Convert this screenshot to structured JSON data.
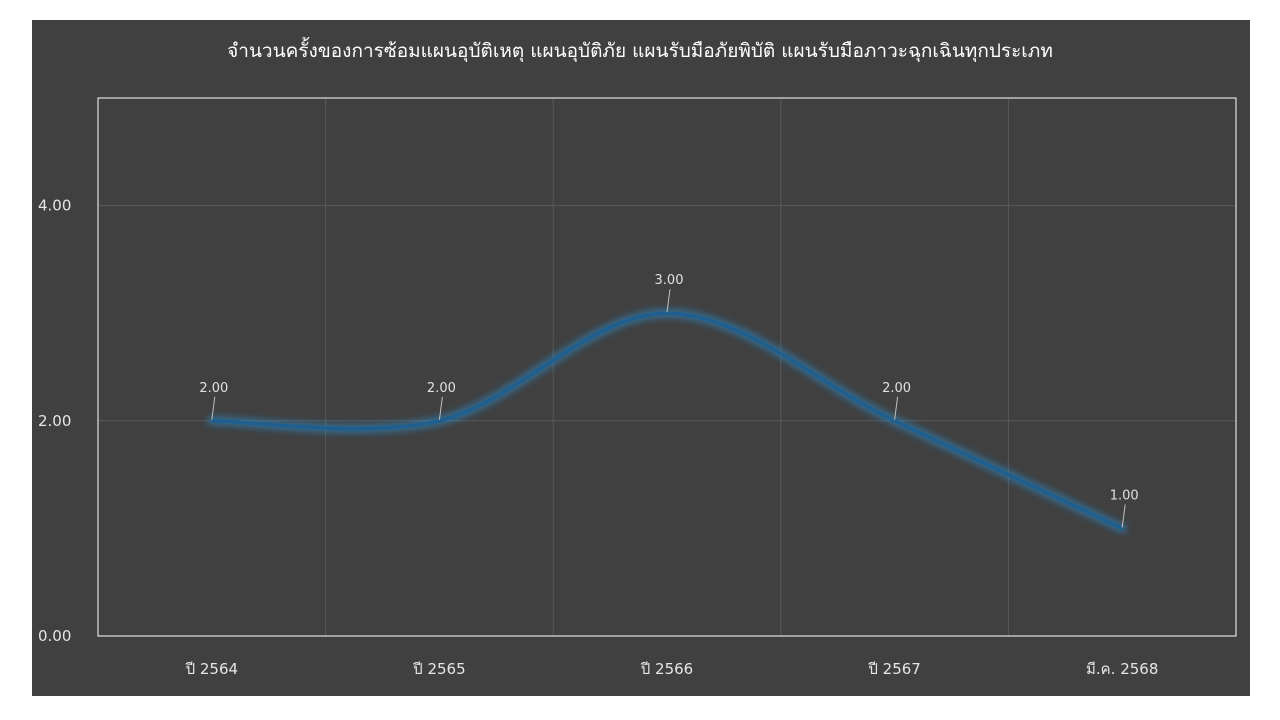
{
  "chart_data": {
    "type": "line",
    "title": "จำนวนครั้งของการซ้อมแผนอุบัติเหตุ แผนอุบัติภัย แผนรับมือภัยพิบัติ แผนรับมือภาวะฉุกเฉินทุกประเภท",
    "xlabel": "",
    "ylabel": "",
    "categories": [
      "ปี 2564",
      "ปี 2565",
      "ปี 2566",
      "ปี 2567",
      "มี.ค. 2568"
    ],
    "series": [
      {
        "values": [
          2,
          2,
          3,
          2,
          1
        ],
        "labels": [
          "2.00",
          "2.00",
          "3.00",
          "2.00",
          "1.00"
        ]
      }
    ],
    "ylim": [
      0,
      5
    ],
    "yticks": [
      0,
      2,
      4
    ],
    "ytick_labels": [
      "0.00",
      "2.00",
      "4.00"
    ],
    "grid": true,
    "smooth": true,
    "legend": "none",
    "colors": {
      "background": "#404040",
      "plot_border": "#ffffff",
      "grid": "#595959",
      "line": "#1f5f8f",
      "glow": "#2a8fd6",
      "text": "#e6e6e6"
    }
  }
}
